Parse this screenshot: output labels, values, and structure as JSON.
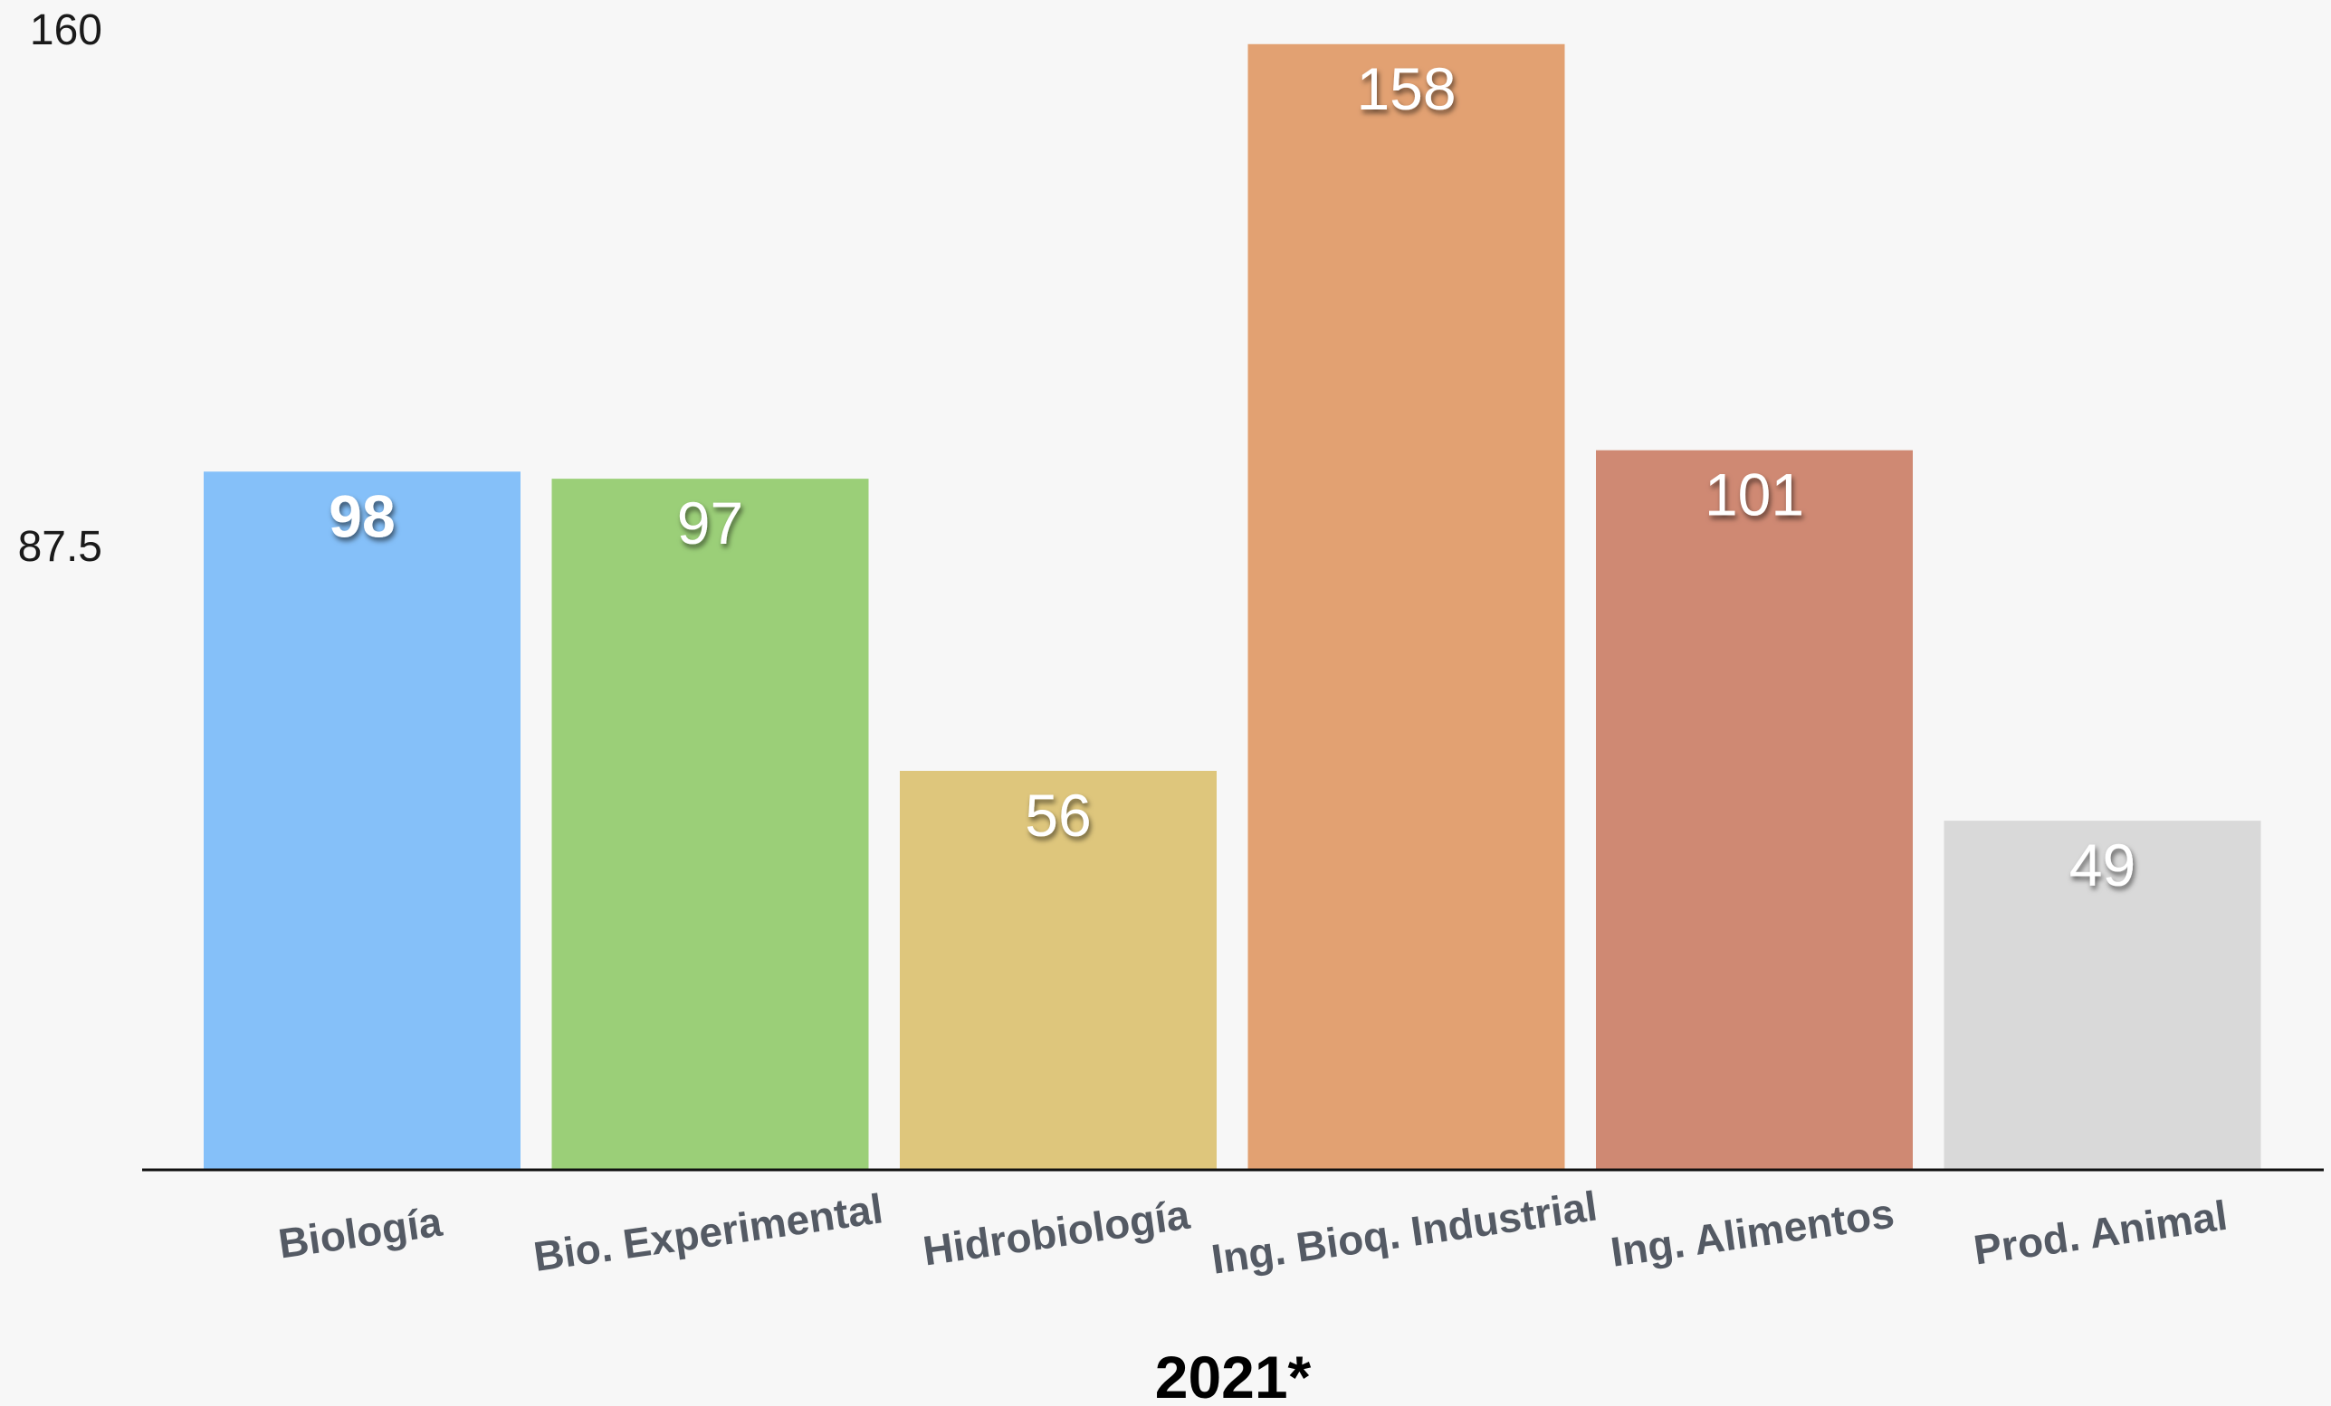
{
  "chart_data": {
    "type": "bar",
    "title": "",
    "xlabel": "2021*",
    "ylabel": "",
    "ylim": [
      0,
      160
    ],
    "yticks": [
      "160",
      "87.5"
    ],
    "grid": false,
    "legend": "none",
    "categories": [
      "Biología",
      "Bio. Experimental",
      "Hidrobiología",
      "Ing. Bioq. Industrial",
      "Ing. Alimentos",
      "Prod. Animal"
    ],
    "values": [
      98,
      97,
      56,
      158,
      101,
      49
    ],
    "data_labels": [
      "98",
      "97",
      "56",
      "158",
      "101",
      "49"
    ],
    "bold_label_index": 0,
    "colors": [
      "#85c0f9",
      "#9bcf78",
      "#dec67c",
      "#e2a172",
      "#cf8973",
      "#d9d9d9"
    ]
  }
}
